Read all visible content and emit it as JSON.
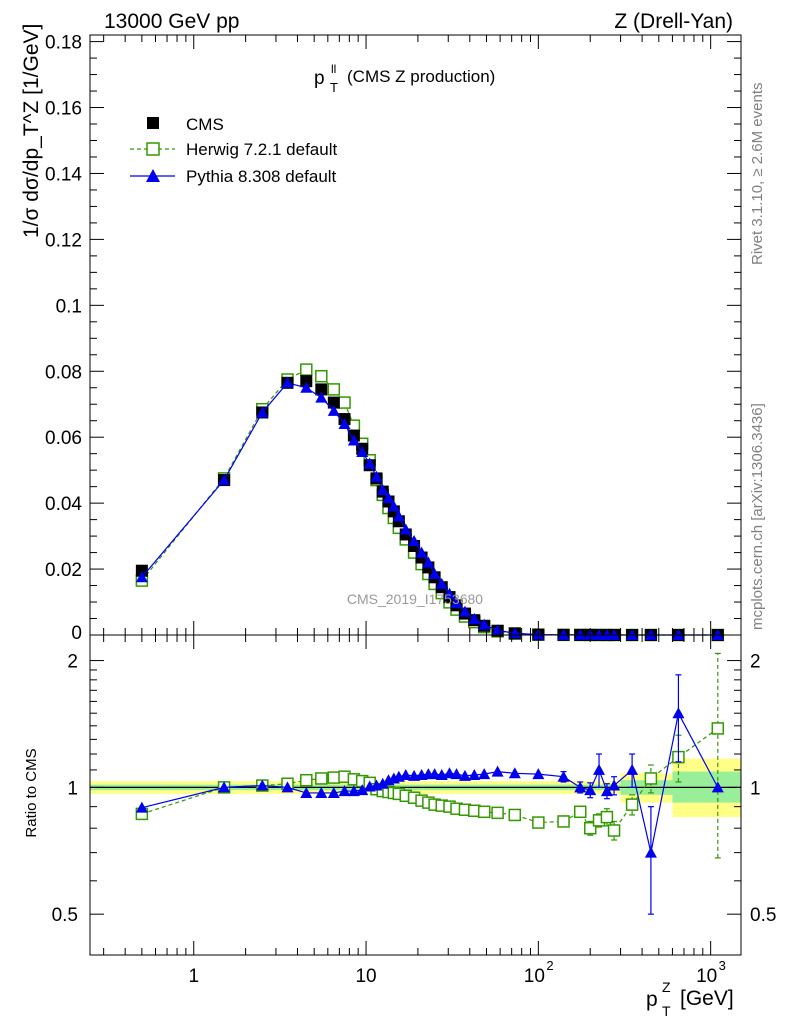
{
  "header": {
    "left": "13000 GeV pp",
    "right": "Z (Drell-Yan)"
  },
  "side_labels": {
    "rivet": "Rivet 3.1.10, ≥ 2.6M events",
    "mcplots": "mcplots.cern.ch [arXiv:1306.3436]"
  },
  "watermark": "CMS_2019_I1753680",
  "colors": {
    "cms": "#000000",
    "herwig": "#339900",
    "pythia": "#0000ee",
    "band_inner": "#99ee99",
    "band_outer": "#ffff88"
  },
  "chart_data": [
    {
      "type": "scatter",
      "title": "p_T^ll (CMS Z production)",
      "title_main": "p",
      "title_sub": "T",
      "title_sup": "ll",
      "title_rest": "(CMS Z production)",
      "ylabel": "1/σ dσ/dp_T^Z [1/GeV]",
      "xscale": "log",
      "xlim": [
        0.25,
        1500
      ],
      "ylim": [
        0,
        0.182
      ],
      "yticks": [
        0,
        0.02,
        0.04,
        0.06,
        0.08,
        0.1,
        0.12,
        0.14,
        0.16,
        0.18
      ],
      "ytick_labels": [
        "0",
        "0.02",
        "0.04",
        "0.06",
        "0.08",
        "0.1",
        "0.12",
        "0.14",
        "0.16",
        "0.18"
      ],
      "legend": [
        {
          "key": "cms",
          "label": "CMS",
          "marker": "filled-square"
        },
        {
          "key": "herwig",
          "label": "Herwig 7.2.1 default",
          "marker": "open-square-dashed"
        },
        {
          "key": "pythia",
          "label": "Pythia 8.308 default",
          "marker": "filled-triangle"
        }
      ],
      "x": [
        0.5,
        1.5,
        2.5,
        3.5,
        4.5,
        5.5,
        6.5,
        7.5,
        8.5,
        9.5,
        10.5,
        11.5,
        12.5,
        13.5,
        14.5,
        15.5,
        17,
        19,
        21,
        23,
        25,
        27.5,
        30.5,
        33.5,
        37.5,
        42.5,
        48.5,
        58,
        73,
        100,
        140,
        175,
        200,
        225,
        250,
        275,
        350,
        450,
        650,
        1100
      ],
      "series": [
        {
          "name": "CMS",
          "key": "cms",
          "values": [
            0.0195,
            0.047,
            0.0675,
            0.0765,
            0.077,
            0.0745,
            0.0705,
            0.0655,
            0.0605,
            0.0565,
            0.0515,
            0.0475,
            0.0435,
            0.0405,
            0.0375,
            0.0345,
            0.0305,
            0.027,
            0.0235,
            0.0205,
            0.0175,
            0.0145,
            0.0115,
            0.009,
            0.0065,
            0.0045,
            0.0028,
            0.0013,
            0.0005,
            0.00012,
            5e-05,
            3e-05,
            2e-05,
            1.5e-05,
            1e-05,
            8e-06,
            4e-06,
            2e-06,
            7e-07,
            1e-07
          ]
        },
        {
          "name": "Herwig 7.2.1 default",
          "key": "herwig",
          "values": [
            0.0165,
            0.0475,
            0.0685,
            0.0775,
            0.0805,
            0.0785,
            0.0745,
            0.0705,
            0.0635,
            0.058,
            0.053,
            0.047,
            0.0425,
            0.0385,
            0.0355,
            0.0325,
            0.029,
            0.025,
            0.0215,
            0.0185,
            0.0155,
            0.0127,
            0.0099,
            0.0077,
            0.0056,
            0.0039,
            0.0024,
            0.0011,
            0.00042,
            0.0001,
            4e-05,
            2.7e-05,
            1.6e-05,
            1.3e-05,
            8.5e-06,
            6.5e-06,
            3.7e-06,
            2.1e-06,
            8e-07,
            1.5e-07
          ]
        },
        {
          "name": "Pythia 8.308 default",
          "key": "pythia",
          "values": [
            0.0175,
            0.047,
            0.0675,
            0.0765,
            0.075,
            0.072,
            0.068,
            0.064,
            0.059,
            0.0555,
            0.052,
            0.048,
            0.044,
            0.0415,
            0.039,
            0.036,
            0.032,
            0.0285,
            0.025,
            0.022,
            0.0185,
            0.0155,
            0.0125,
            0.0097,
            0.0071,
            0.0049,
            0.0031,
            0.0014,
            0.00054,
            0.00013,
            5.5e-05,
            3e-05,
            2e-05,
            1.7e-05,
            1.1e-05,
            8.5e-06,
            4.5e-06,
            1.5e-06,
            1e-06,
            1e-07
          ]
        }
      ]
    },
    {
      "type": "scatter",
      "title": "",
      "ylabel": "Ratio to CMS",
      "xlabel": "p_T^Z [GeV]",
      "xlabel_main": "p",
      "xlabel_sub": "T",
      "xlabel_sup": "Z",
      "xlabel_rest": "[GeV]",
      "xscale": "log",
      "yscale": "log",
      "xlim": [
        0.25,
        1500
      ],
      "ylim": [
        0.4,
        2.3
      ],
      "yticks": [
        0.5,
        1,
        2
      ],
      "ytick_labels": [
        "0.5",
        "1",
        "2"
      ],
      "xticks": [
        1,
        10,
        100,
        1000
      ],
      "xtick_labels": [
        "1",
        "10",
        "10^2",
        "10^3"
      ],
      "x": [
        0.5,
        1.5,
        2.5,
        3.5,
        4.5,
        5.5,
        6.5,
        7.5,
        8.5,
        9.5,
        10.5,
        11.5,
        12.5,
        13.5,
        14.5,
        15.5,
        17,
        19,
        21,
        23,
        25,
        27.5,
        30.5,
        33.5,
        37.5,
        42.5,
        48.5,
        58,
        73,
        100,
        140,
        175,
        200,
        225,
        250,
        275,
        350,
        450,
        650,
        1100
      ],
      "band_inner": [
        {
          "x0": 0.25,
          "x1": 300,
          "lo": 0.985,
          "hi": 1.015
        },
        {
          "x0": 300,
          "x1": 600,
          "lo": 0.96,
          "hi": 1.04
        },
        {
          "x0": 600,
          "x1": 1500,
          "lo": 0.92,
          "hi": 1.09
        }
      ],
      "band_outer": [
        {
          "x0": 0.25,
          "x1": 300,
          "lo": 0.965,
          "hi": 1.035
        },
        {
          "x0": 300,
          "x1": 600,
          "lo": 0.92,
          "hi": 1.08
        },
        {
          "x0": 600,
          "x1": 1500,
          "lo": 0.85,
          "hi": 1.17
        }
      ],
      "series": [
        {
          "name": "Herwig 7.2.1 default",
          "key": "herwig",
          "values": [
            0.865,
            1.0,
            1.01,
            1.02,
            1.04,
            1.05,
            1.055,
            1.06,
            1.045,
            1.035,
            1.025,
            0.99,
            0.98,
            0.975,
            0.97,
            0.965,
            0.955,
            0.945,
            0.93,
            0.92,
            0.91,
            0.905,
            0.9,
            0.89,
            0.885,
            0.88,
            0.875,
            0.87,
            0.86,
            0.825,
            0.83,
            0.875,
            0.8,
            0.835,
            0.85,
            0.79,
            0.91,
            1.05,
            1.18,
            1.38
          ],
          "err": [
            0,
            0,
            0,
            0,
            0,
            0,
            0,
            0,
            0,
            0,
            0,
            0,
            0,
            0,
            0,
            0,
            0,
            0,
            0,
            0,
            0,
            0,
            0,
            0,
            0,
            0,
            0,
            0,
            0,
            0,
            0,
            0,
            0.03,
            0.03,
            0.04,
            0.04,
            0.05,
            0.08,
            0.15,
            0.7
          ]
        },
        {
          "name": "Pythia 8.308 default",
          "key": "pythia",
          "values": [
            0.895,
            1.0,
            1.01,
            1.0,
            0.97,
            0.97,
            0.97,
            0.98,
            0.98,
            0.985,
            1.005,
            1.01,
            1.02,
            1.04,
            1.05,
            1.06,
            1.07,
            1.065,
            1.07,
            1.075,
            1.075,
            1.07,
            1.08,
            1.075,
            1.065,
            1.07,
            1.075,
            1.09,
            1.08,
            1.075,
            1.06,
            1.0,
            0.985,
            1.1,
            0.98,
            1.01,
            1.1,
            0.7,
            1.5,
            1.0
          ],
          "err": [
            0,
            0,
            0,
            0,
            0,
            0,
            0,
            0,
            0,
            0,
            0,
            0,
            0,
            0,
            0,
            0,
            0,
            0,
            0,
            0,
            0,
            0,
            0,
            0,
            0,
            0,
            0,
            0,
            0,
            0,
            0.03,
            0.03,
            0.04,
            0.1,
            0.04,
            0.05,
            0.1,
            0.2,
            0.35,
            0
          ]
        }
      ]
    }
  ]
}
